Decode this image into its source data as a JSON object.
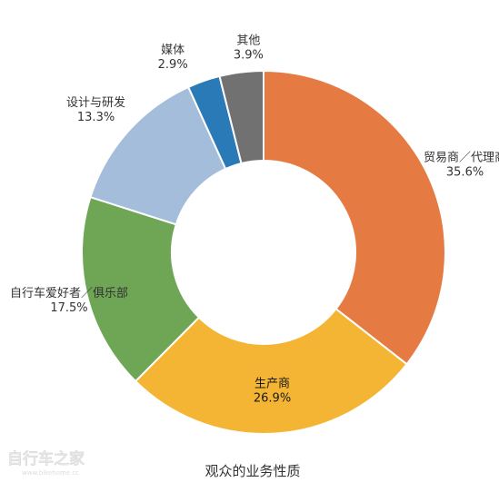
{
  "chart_data": {
    "type": "pie",
    "donut": true,
    "title": "观众的业务性质",
    "slices": [
      {
        "label": "贸易商／代理商",
        "value": 35.6,
        "value_label": "35.6%",
        "color": "#e57b43"
      },
      {
        "label": "生产商",
        "value": 26.9,
        "value_label": "26.9%",
        "color": "#f5b534"
      },
      {
        "label": "自行车爱好者／俱乐部",
        "value": 17.5,
        "value_label": "17.5%",
        "color": "#6ea656"
      },
      {
        "label": "设计与研发",
        "value": 13.3,
        "value_label": "13.3%",
        "color": "#a3bddb"
      },
      {
        "label": "媒体",
        "value": 2.9,
        "value_label": "2.9%",
        "color": "#2a7ab8"
      },
      {
        "label": "其他",
        "value": 3.9,
        "value_label": "3.9%",
        "color": "#717171"
      }
    ],
    "legend": "none"
  },
  "watermark": {
    "text": "自行车之家",
    "sub": "www.bikehome.cc"
  }
}
